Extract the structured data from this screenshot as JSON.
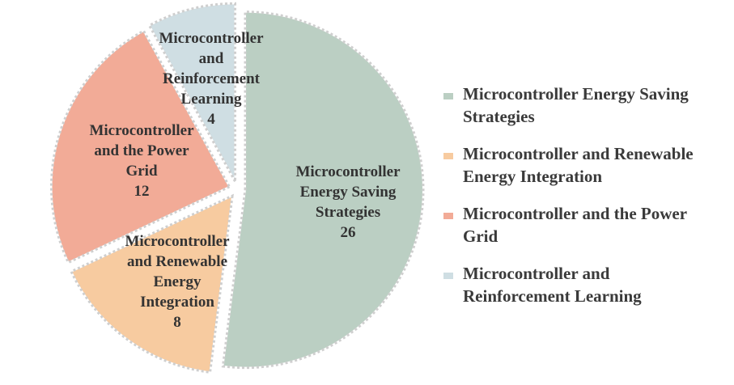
{
  "chart_data": {
    "type": "pie",
    "slices": [
      {
        "label": "Microcontroller Energy Saving Strategies",
        "value": 26,
        "color": "#bbcfc3",
        "label_lines": [
          "Microcontroller",
          "Energy Saving",
          "Strategies",
          "26"
        ]
      },
      {
        "label": "Microcontroller and Renewable Energy Integration",
        "value": 8,
        "color": "#f7cba0",
        "label_lines": [
          "Microcontroller",
          "and Renewable",
          "Energy",
          "Integration",
          "8"
        ]
      },
      {
        "label": "Microcontroller and the Power Grid",
        "value": 12,
        "color": "#f2ab97",
        "label_lines": [
          "Microcontroller",
          "and the Power",
          "Grid",
          "12"
        ]
      },
      {
        "label": "Microcontroller and Reinforcement Learning",
        "value": 4,
        "color": "#cfdee3",
        "label_lines": [
          "Microcontroller",
          "and",
          "Reinforcement",
          "Learning",
          "4"
        ]
      }
    ],
    "legend": {
      "position": "right",
      "entries": [
        {
          "lines": [
            "Microcontroller Energy Saving",
            "Strategies"
          ],
          "color": "#bbcfc3"
        },
        {
          "lines": [
            "Microcontroller and Renewable",
            "Energy Integration"
          ],
          "color": "#f7cba0"
        },
        {
          "lines": [
            "Microcontroller and the Power",
            "Grid"
          ],
          "color": "#f2ab97"
        },
        {
          "lines": [
            "Microcontroller and",
            "Reinforcement Learning"
          ],
          "color": "#cfdee3"
        }
      ]
    },
    "exploded": true
  }
}
